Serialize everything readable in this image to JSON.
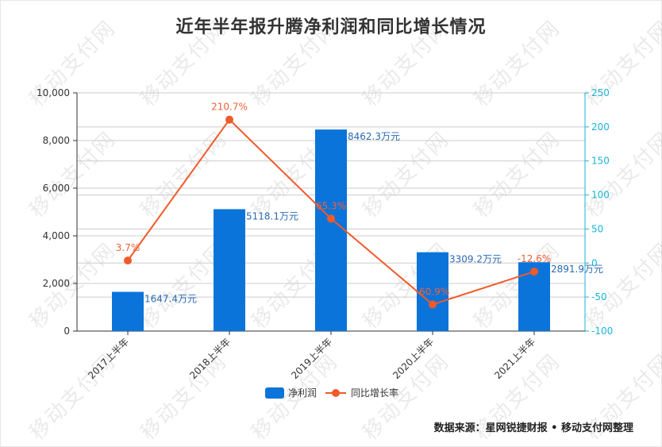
{
  "title": "近年半年报升腾净利润和同比增长情况",
  "source": "数据来源：星网锐捷财报 • 移动支付网整理",
  "watermark_text": "移动支付网",
  "colors": {
    "bar": "#0a74da",
    "line": "#f15a29",
    "bar_label": "#2a6ab3",
    "line_label": "#f0603a",
    "right_axis": "#1ab4d6",
    "left_axis": "#333333",
    "grid": "#cccccc"
  },
  "legend": {
    "bar_label": "净利润",
    "line_label": "同比增长率"
  },
  "chart_data": {
    "type": "bar+line",
    "title": "近年半年报升腾净利润和同比增长情况",
    "categories": [
      "2017上半年",
      "2018上半年",
      "2019上半年",
      "2020上半年",
      "2021上半年"
    ],
    "series": [
      {
        "name": "净利润",
        "type": "bar",
        "axis": "left",
        "values": [
          1647.4,
          5118.1,
          8462.3,
          3309.2,
          2891.9
        ],
        "labels": [
          "1647.4万元",
          "5118.1万元",
          "8462.3万元",
          "3309.2万元",
          "2891.9万元"
        ]
      },
      {
        "name": "同比增长率",
        "type": "line",
        "axis": "right",
        "values": [
          3.7,
          210.7,
          65.3,
          -60.9,
          -12.6
        ],
        "labels": [
          "3.7%",
          "210.7%",
          "65.3%",
          "-60.9%",
          "-12.6%"
        ]
      }
    ],
    "left_axis": {
      "min": 0,
      "max": 10000,
      "ticks": [
        0,
        2000,
        4000,
        6000,
        8000,
        10000
      ],
      "tick_labels": [
        "0",
        "2,000",
        "4,000",
        "6,000",
        "8,000",
        "10,000"
      ]
    },
    "right_axis": {
      "min": -100,
      "max": 250,
      "ticks": [
        -100,
        -50,
        0,
        50,
        100,
        150,
        200,
        250
      ],
      "tick_labels": [
        "-100",
        "-50",
        "0",
        "50",
        "100",
        "150",
        "200",
        "250"
      ]
    },
    "grid": true,
    "legend_position": "bottom"
  }
}
